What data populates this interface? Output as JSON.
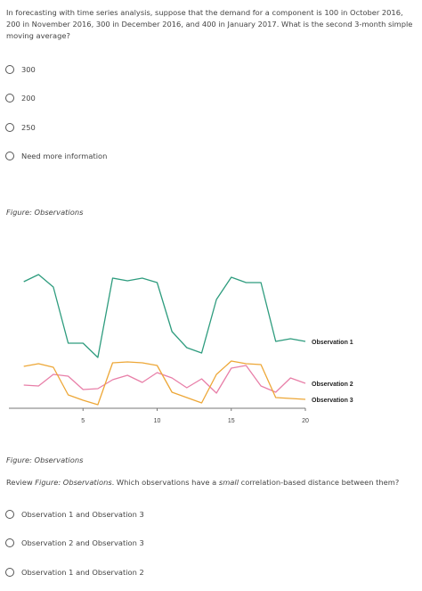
{
  "question1": {
    "text": "In forecasting with time series analysis, suppose that the demand for a component is 100 in October 2016, 200 in November 2016, 300 in December 2016, and 400 in January 2017. What is the second 3-month simple moving average?",
    "options": [
      "300",
      "200",
      "250",
      "Need more information"
    ]
  },
  "figure": {
    "caption": "Figure: Observations"
  },
  "question2": {
    "prefix": "Review ",
    "figure_ref": "Figure: Observations",
    "middle": ". Which observations have a ",
    "emphasis": "small",
    "suffix": " correlation-based distance between them?",
    "options": [
      "Observation 1 and Observation 3",
      "Observation 2 and Observation 3",
      "Observation 1 and Observation 2"
    ]
  },
  "chart_data": {
    "type": "line",
    "title": "",
    "xlabel": "",
    "ylabel": "",
    "xlim": [
      0,
      20
    ],
    "ylim": [
      0,
      150
    ],
    "x": [
      1,
      2,
      3,
      4,
      5,
      6,
      7,
      8,
      9,
      10,
      11,
      12,
      13,
      14,
      15,
      16,
      17,
      18,
      19,
      20
    ],
    "x_ticks": [
      5,
      10,
      15,
      20
    ],
    "grid": false,
    "legend_placement": "right-end labels",
    "series": [
      {
        "name": "Observation 1",
        "color": "#2e9c7e",
        "values": [
          142,
          150,
          136,
          73,
          73,
          57,
          146,
          143,
          146,
          141,
          86,
          68,
          62,
          122,
          147,
          141,
          141,
          75,
          78,
          75
        ]
      },
      {
        "name": "Observation 2",
        "color": "#e87fa8",
        "values": [
          26,
          25,
          38,
          36,
          21,
          22,
          32,
          37,
          29,
          40,
          34,
          23,
          33,
          17,
          45,
          48,
          25,
          18,
          34,
          28
        ]
      },
      {
        "name": "Observation 3",
        "color": "#eda737",
        "values": [
          47,
          50,
          46,
          15,
          9,
          4,
          51,
          52,
          51,
          48,
          18,
          12,
          6,
          38,
          53,
          50,
          49,
          12,
          11,
          10
        ]
      }
    ]
  }
}
